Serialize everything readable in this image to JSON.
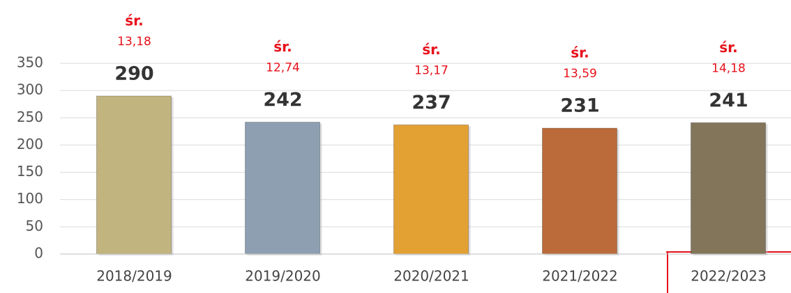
{
  "chart_data": {
    "type": "bar",
    "categories": [
      "2018/2019",
      "2019/2020",
      "2020/2021",
      "2021/2022",
      "2022/2023"
    ],
    "values": [
      290,
      242,
      237,
      231,
      241
    ],
    "colors": [
      "#c2b47e",
      "#8e9fb2",
      "#e3a033",
      "#bb6a3a",
      "#82755a"
    ],
    "annotations": [
      {
        "label": "śr.",
        "value": "13,18"
      },
      {
        "label": "śr.",
        "value": "12,74"
      },
      {
        "label": "śr.",
        "value": "13,17"
      },
      {
        "label": "śr.",
        "value": "13,59"
      },
      {
        "label": "śr.",
        "value": "14,18"
      }
    ],
    "ylim": [
      0,
      350
    ],
    "yticks": [
      0,
      50,
      100,
      150,
      200,
      250,
      300,
      350
    ],
    "grid": true
  }
}
